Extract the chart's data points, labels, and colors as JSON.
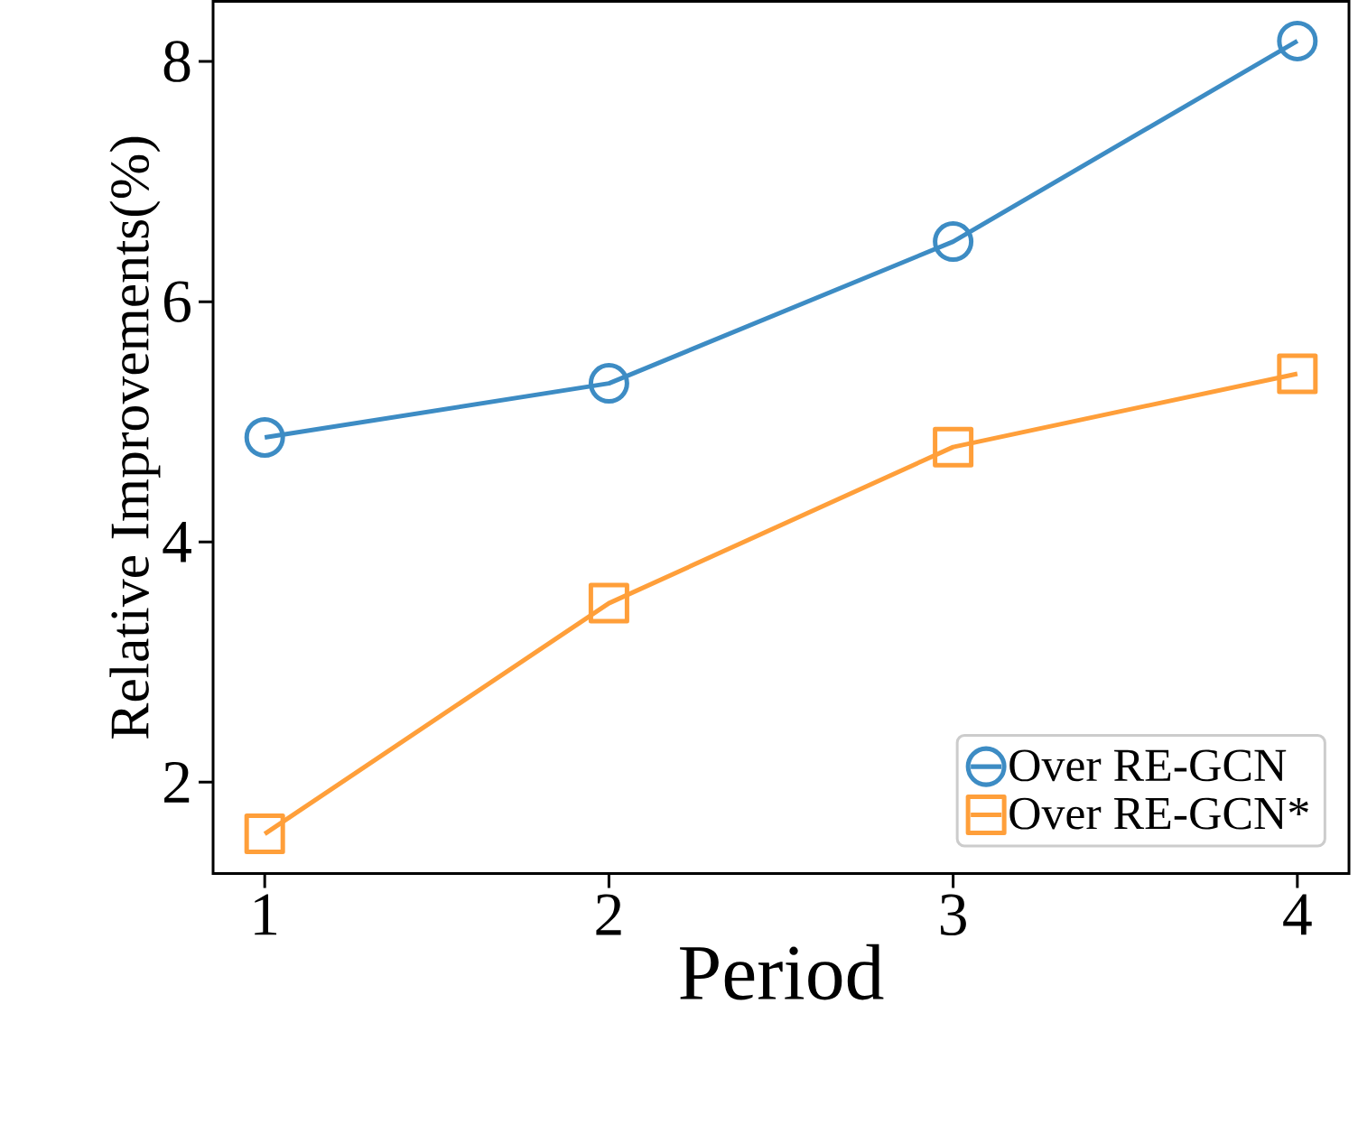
{
  "chart_data": {
    "type": "line",
    "xlabel": "Period",
    "ylabel": "Relative Improvements(%)",
    "x": [
      1,
      2,
      3,
      4
    ],
    "series": [
      {
        "name": "Over RE-GCN",
        "color": "#3d8cc4",
        "marker": "circle",
        "values": [
          4.87,
          5.32,
          6.5,
          8.17
        ]
      },
      {
        "name": "Over RE-GCN*",
        "color": "#ff9f3a",
        "marker": "square",
        "values": [
          1.57,
          3.49,
          4.79,
          5.4
        ]
      }
    ],
    "xlim": [
      0.85,
      4.15
    ],
    "ylim": [
      1.24,
      8.5
    ],
    "xticks": [
      1,
      2,
      3,
      4
    ],
    "yticks": [
      2,
      4,
      6,
      8
    ],
    "grid": false,
    "legend": "bottom right",
    "line_style": "solid"
  }
}
